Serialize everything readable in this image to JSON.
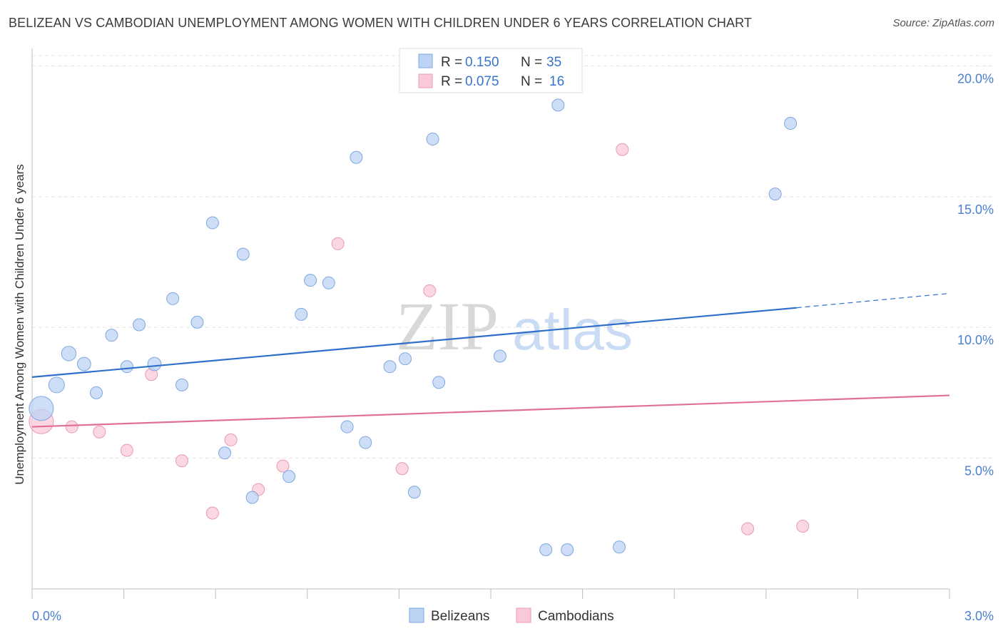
{
  "title": "BELIZEAN VS CAMBODIAN UNEMPLOYMENT AMONG WOMEN WITH CHILDREN UNDER 6 YEARS CORRELATION CHART",
  "source": "Source: ZipAtlas.com",
  "watermark": {
    "zip": "ZIP",
    "atlas": "atlas"
  },
  "colors": {
    "belizean_fill": "#bcd3f3",
    "belizean_stroke": "#7ea7e0",
    "belizean_line": "#2f6fcc",
    "cambodian_fill": "#f9c9d8",
    "cambodian_stroke": "#e89ab4",
    "cambodian_line": "#e0709a",
    "tick_text": "#4a7fd1"
  },
  "legend": {
    "rows": [
      {
        "r_label": "R =",
        "r_value": "0.150",
        "n_label": "N =",
        "n_value": "35"
      },
      {
        "r_label": "R =",
        "r_value": "0.075",
        "n_label": "N =",
        "n_value": "16"
      }
    ]
  },
  "chart_data": {
    "type": "scatter",
    "title": "BELIZEAN VS CAMBODIAN UNEMPLOYMENT AMONG WOMEN WITH CHILDREN UNDER 6 YEARS CORRELATION CHART",
    "xlabel": "",
    "ylabel": "Unemployment Among Women with Children Under 6 years",
    "xlim": [
      0,
      3.0
    ],
    "ylim": [
      0,
      20.5
    ],
    "x_tick_labels": [
      "0.0%",
      "3.0%"
    ],
    "y_ticks": [
      5,
      10,
      15,
      20
    ],
    "y_tick_labels": [
      "5.0%",
      "10.0%",
      "15.0%",
      "20.0%"
    ],
    "grid": true,
    "legend_position": "top-center",
    "series": [
      {
        "name": "Belizeans",
        "r": 0.15,
        "n": 35,
        "points": [
          {
            "x": 0.03,
            "y": 6.9,
            "s": 2
          },
          {
            "x": 0.08,
            "y": 7.8,
            "s": 1.3
          },
          {
            "x": 0.12,
            "y": 9.0,
            "s": 1.2
          },
          {
            "x": 0.17,
            "y": 8.6,
            "s": 1.1
          },
          {
            "x": 0.21,
            "y": 7.5,
            "s": 1
          },
          {
            "x": 0.26,
            "y": 9.7,
            "s": 1
          },
          {
            "x": 0.31,
            "y": 8.5,
            "s": 1
          },
          {
            "x": 0.35,
            "y": 10.1,
            "s": 1
          },
          {
            "x": 0.4,
            "y": 8.6,
            "s": 1.1
          },
          {
            "x": 0.46,
            "y": 11.1,
            "s": 1
          },
          {
            "x": 0.49,
            "y": 7.8,
            "s": 1
          },
          {
            "x": 0.54,
            "y": 10.2,
            "s": 1
          },
          {
            "x": 0.59,
            "y": 14.0,
            "s": 1
          },
          {
            "x": 0.63,
            "y": 5.2,
            "s": 1
          },
          {
            "x": 0.69,
            "y": 12.8,
            "s": 1
          },
          {
            "x": 0.72,
            "y": 3.5,
            "s": 1
          },
          {
            "x": 0.84,
            "y": 4.3,
            "s": 1
          },
          {
            "x": 0.88,
            "y": 10.5,
            "s": 1
          },
          {
            "x": 0.91,
            "y": 11.8,
            "s": 1
          },
          {
            "x": 0.97,
            "y": 11.7,
            "s": 1
          },
          {
            "x": 1.03,
            "y": 6.2,
            "s": 1
          },
          {
            "x": 1.06,
            "y": 16.5,
            "s": 1
          },
          {
            "x": 1.09,
            "y": 5.6,
            "s": 1
          },
          {
            "x": 1.17,
            "y": 8.5,
            "s": 1
          },
          {
            "x": 1.22,
            "y": 8.8,
            "s": 1
          },
          {
            "x": 1.25,
            "y": 3.7,
            "s": 1
          },
          {
            "x": 1.31,
            "y": 17.2,
            "s": 1
          },
          {
            "x": 1.33,
            "y": 7.9,
            "s": 1
          },
          {
            "x": 1.53,
            "y": 8.9,
            "s": 1
          },
          {
            "x": 1.68,
            "y": 1.5,
            "s": 1
          },
          {
            "x": 1.72,
            "y": 18.5,
            "s": 1
          },
          {
            "x": 1.75,
            "y": 1.5,
            "s": 1
          },
          {
            "x": 1.92,
            "y": 1.6,
            "s": 1
          },
          {
            "x": 2.43,
            "y": 15.1,
            "s": 1
          },
          {
            "x": 2.48,
            "y": 17.8,
            "s": 1
          }
        ],
        "trend": {
          "x0": 0.0,
          "y0": 8.1,
          "x1": 2.5,
          "y1": 10.75,
          "dash_to_x": 3.0,
          "dash_to_y": 11.3
        }
      },
      {
        "name": "Cambodians",
        "r": 0.075,
        "n": 16,
        "points": [
          {
            "x": 0.03,
            "y": 6.4,
            "s": 2
          },
          {
            "x": 0.13,
            "y": 6.2,
            "s": 1
          },
          {
            "x": 0.22,
            "y": 6.0,
            "s": 1
          },
          {
            "x": 0.31,
            "y": 5.3,
            "s": 1
          },
          {
            "x": 0.39,
            "y": 8.2,
            "s": 1
          },
          {
            "x": 0.49,
            "y": 4.9,
            "s": 1
          },
          {
            "x": 0.59,
            "y": 2.9,
            "s": 1
          },
          {
            "x": 0.65,
            "y": 5.7,
            "s": 1
          },
          {
            "x": 0.74,
            "y": 3.8,
            "s": 1
          },
          {
            "x": 0.82,
            "y": 4.7,
            "s": 1
          },
          {
            "x": 1.0,
            "y": 13.2,
            "s": 1
          },
          {
            "x": 1.21,
            "y": 4.6,
            "s": 1
          },
          {
            "x": 1.3,
            "y": 11.4,
            "s": 1
          },
          {
            "x": 1.93,
            "y": 16.8,
            "s": 1
          },
          {
            "x": 2.34,
            "y": 2.3,
            "s": 1
          },
          {
            "x": 2.52,
            "y": 2.4,
            "s": 1
          }
        ],
        "trend": {
          "x0": 0.0,
          "y0": 6.2,
          "x1": 3.0,
          "y1": 7.4
        }
      }
    ]
  }
}
